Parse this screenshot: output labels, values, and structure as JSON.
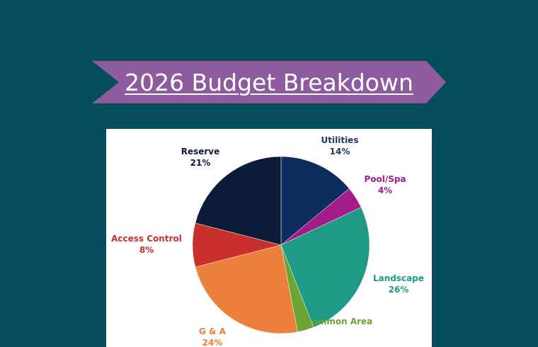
{
  "title": "2026 Budget Breakdown",
  "colors": {
    "background": "#034d5c",
    "banner": "#8e5b9f",
    "title_text": "#ffffff",
    "card": "#ffffff"
  },
  "chart_data": {
    "type": "pie",
    "title": "",
    "slices": [
      {
        "label": "Utilities",
        "value": 14,
        "value_label": "14%",
        "color": "#0d2d5c",
        "label_color": "#1d3a66"
      },
      {
        "label": "Pool/Spa",
        "value": 4,
        "value_label": "4%",
        "color": "#a31c8c",
        "label_color": "#a31c8c"
      },
      {
        "label": "Landscape",
        "value": 26,
        "value_label": "26%",
        "color": "#1f9a86",
        "label_color": "#1f9a86"
      },
      {
        "label": "Common Area",
        "value": 3,
        "value_label": "",
        "color": "#6aa534",
        "label_color": "#6aa534"
      },
      {
        "label": "G & A",
        "value": 24,
        "value_label": "24%",
        "color": "#ea803b",
        "label_color": "#ea803b"
      },
      {
        "label": "Access Control",
        "value": 8,
        "value_label": "8%",
        "color": "#c9302c",
        "label_color": "#c9302c"
      },
      {
        "label": "Reserve",
        "value": 21,
        "value_label": "21%",
        "color": "#0c1b38",
        "label_color": "#0c1b38"
      }
    ],
    "legend": "none"
  }
}
